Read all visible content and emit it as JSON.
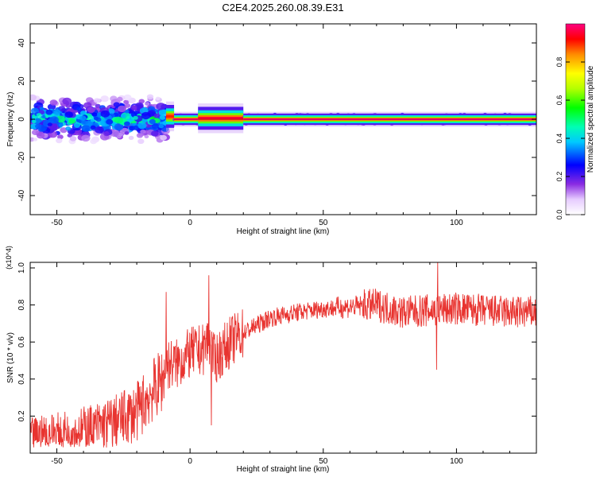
{
  "title": "C2E4.2025.260.08.39.E31",
  "chart_data": [
    {
      "type": "heatmap",
      "title": "C2E4.2025.260.08.39.E31",
      "xlabel": "Height of straight line (km)",
      "ylabel": "Frequency (Hz)",
      "xlim": [
        -60,
        130
      ],
      "ylim": [
        -50,
        50
      ],
      "xticks": [
        -50,
        0,
        50,
        100
      ],
      "yticks": [
        -40,
        -20,
        0,
        20,
        40
      ],
      "colorbar": {
        "label": "Normalized spectral amplitude",
        "range": [
          0.0,
          1.0
        ],
        "ticks": [
          "0.0",
          "0.2",
          "0.4",
          "0.6",
          "0.8"
        ]
      },
      "segments": [
        {
          "x_start": -60,
          "x_end": -9,
          "center_hz": 0,
          "spread_hz": 10,
          "peak": 0.55,
          "kind": "noisy"
        },
        {
          "x_start": -9,
          "x_end": -6,
          "center_hz": 1.5,
          "spread_hz": 3,
          "peak": 0.9,
          "kind": "tone"
        },
        {
          "x_start": -6,
          "x_end": 3,
          "center_hz": 0,
          "spread_hz": 1.5,
          "peak": 1.0,
          "kind": "tone"
        },
        {
          "x_start": 3,
          "x_end": 20,
          "center_hz": 0.5,
          "spread_hz": 3,
          "peak": 0.95,
          "kind": "tone"
        },
        {
          "x_start": 20,
          "x_end": 130,
          "center_hz": 0,
          "spread_hz": 1.5,
          "peak": 1.0,
          "kind": "tone"
        }
      ]
    },
    {
      "type": "line",
      "xlabel": "Height of straight line (km)",
      "ylabel": "SNR (10 * v/v)",
      "y_multiplier": "(x10^4)",
      "xlim": [
        -60,
        130
      ],
      "ylim": [
        0.0,
        1.03
      ],
      "xticks": [
        -50,
        0,
        50,
        100
      ],
      "yticks": [
        0.2,
        0.4,
        0.6,
        0.8,
        1.0
      ],
      "series": [
        {
          "name": "SNR",
          "color": "#e8332f",
          "x": [
            -60,
            -50,
            -40,
            -30,
            -20,
            -15,
            -10,
            -9,
            -5,
            0,
            5,
            7,
            9,
            12,
            15,
            20,
            30,
            40,
            50,
            60,
            70,
            80,
            90,
            100,
            110,
            120,
            130
          ],
          "y": [
            0.1,
            0.12,
            0.13,
            0.16,
            0.22,
            0.32,
            0.4,
            0.48,
            0.48,
            0.54,
            0.56,
            0.62,
            0.5,
            0.55,
            0.6,
            0.65,
            0.73,
            0.76,
            0.78,
            0.79,
            0.8,
            0.76,
            0.77,
            0.78,
            0.77,
            0.76,
            0.76
          ],
          "peaks": [
            {
              "x": -9,
              "y": 0.87
            },
            {
              "x": 7,
              "y": 0.96
            },
            {
              "x": 8,
              "y": 0.15
            },
            {
              "x": 93,
              "y": 1.03
            },
            {
              "x": 92.5,
              "y": 0.45
            }
          ]
        }
      ]
    }
  ]
}
